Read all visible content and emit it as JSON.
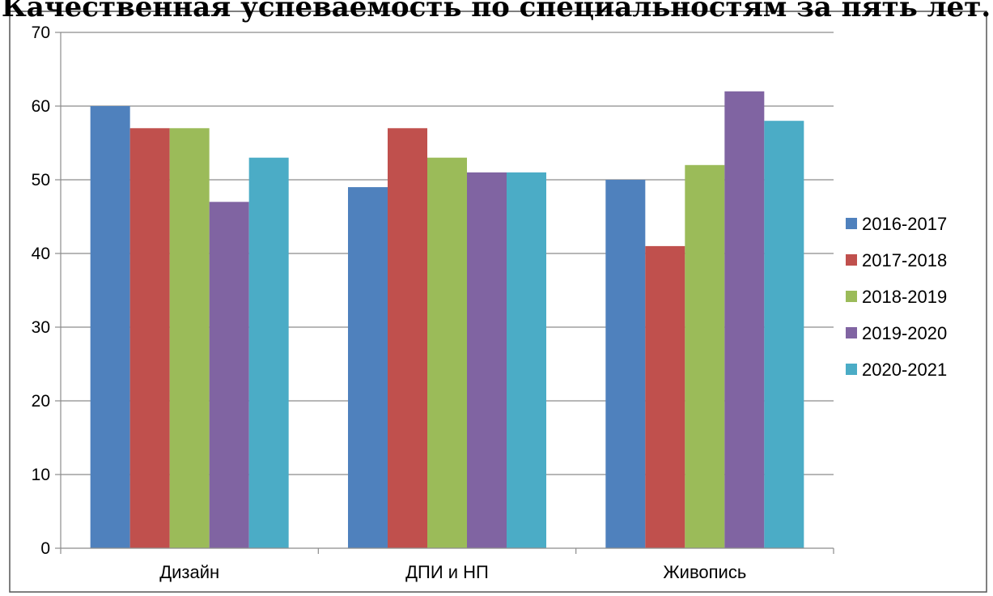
{
  "chart_data": {
    "type": "bar",
    "title": "Качественная успеваемость по специальностям за пять лет.",
    "xlabel": "",
    "ylabel": "",
    "categories": [
      "Дизайн",
      "ДПИ и НП",
      "Живопись"
    ],
    "ylim": [
      0,
      70
    ],
    "yticks": [
      "0",
      "10",
      "20",
      "30",
      "40",
      "50",
      "60",
      "70"
    ],
    "grid": true,
    "legend_position": "right",
    "series": [
      {
        "name": "2016-2017",
        "color": "#4f81bd",
        "values": [
          60,
          49,
          50
        ]
      },
      {
        "name": "2017-2018",
        "color": "#c0504d",
        "values": [
          57,
          57,
          41
        ]
      },
      {
        "name": "2018-2019",
        "color": "#9bbb59",
        "values": [
          57,
          53,
          52
        ]
      },
      {
        "name": "2019-2020",
        "color": "#8064a2",
        "values": [
          47,
          51,
          62
        ]
      },
      {
        "name": "2020-2021",
        "color": "#4bacc6",
        "values": [
          53,
          51,
          58
        ]
      }
    ]
  }
}
